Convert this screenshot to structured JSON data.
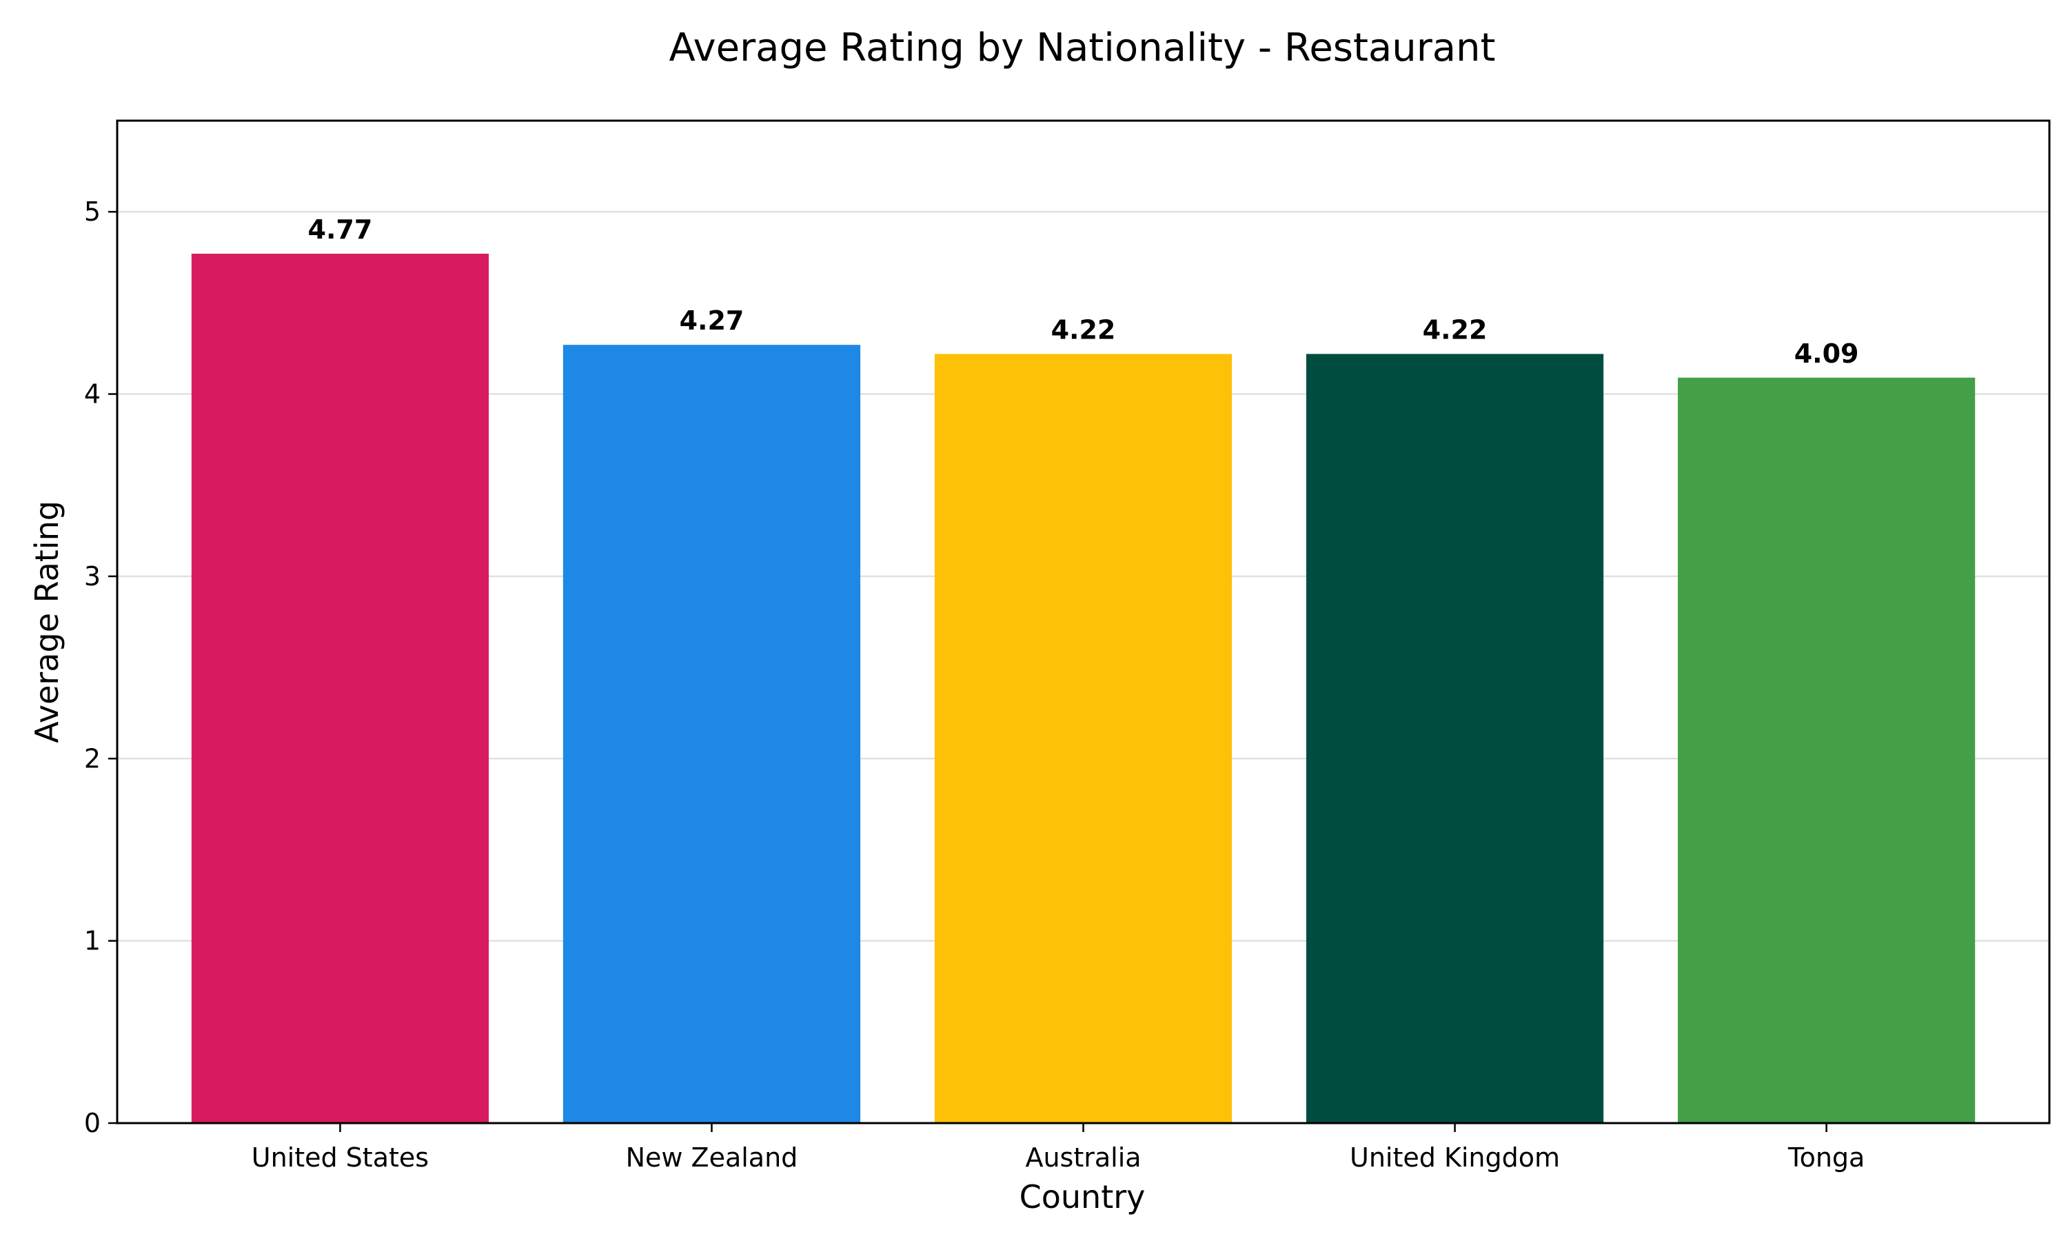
{
  "chart_data": {
    "type": "bar",
    "title": "Average Rating by Nationality - Restaurant",
    "xlabel": "Country",
    "ylabel": "Average Rating",
    "categories": [
      "United States",
      "New Zealand",
      "Australia",
      "United Kingdom",
      "Tonga"
    ],
    "values": [
      4.77,
      4.27,
      4.22,
      4.22,
      4.09
    ],
    "value_labels": [
      "4.77",
      "4.27",
      "4.22",
      "4.22",
      "4.09"
    ],
    "colors": [
      "#d81b60",
      "#1e88e5",
      "#ffc107",
      "#004d40",
      "#43a047"
    ],
    "ylim": [
      0,
      5.5
    ],
    "yticks": [
      0,
      1,
      2,
      3,
      4,
      5
    ],
    "grid": "horizontal",
    "legend": "none"
  }
}
